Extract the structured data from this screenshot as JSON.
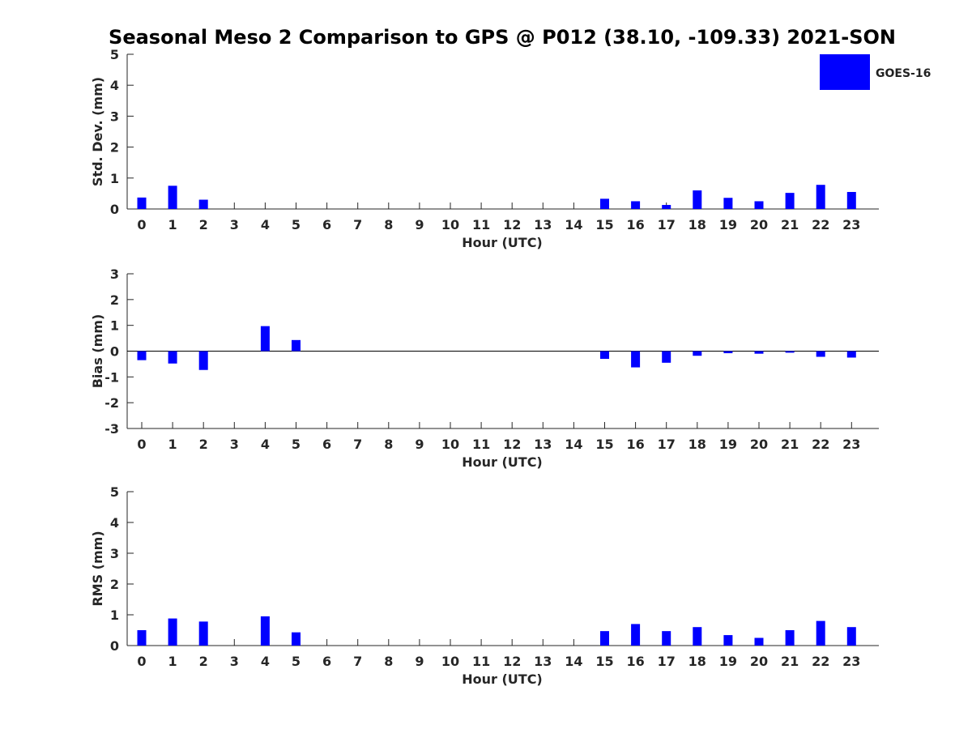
{
  "figure": {
    "title": "Seasonal Meso 2 Comparison to GPS @ P012 (38.10, -109.33) 2021-SON",
    "legend_label": "GOES-16",
    "bar_color": "#0000ff",
    "legend_placement": "top-right"
  },
  "chart_data": [
    {
      "type": "bar",
      "title": "Seasonal Meso 2 Comparison to GPS @ P012 (38.10, -109.33) 2021-SON",
      "xlabel": "Hour (UTC)",
      "ylabel": "Std. Dev. (mm)",
      "ylim": [
        0,
        5
      ],
      "yticks": [
        0,
        1,
        2,
        3,
        4,
        5
      ],
      "categories": [
        "0",
        "1",
        "2",
        "3",
        "4",
        "5",
        "6",
        "7",
        "8",
        "9",
        "10",
        "11",
        "12",
        "13",
        "14",
        "15",
        "16",
        "17",
        "18",
        "19",
        "20",
        "21",
        "22",
        "23"
      ],
      "series": [
        {
          "name": "GOES-16",
          "values": [
            0.37,
            0.75,
            0.3,
            null,
            0.0,
            0.0,
            null,
            null,
            null,
            null,
            null,
            null,
            null,
            null,
            null,
            0.33,
            0.25,
            0.13,
            0.6,
            0.36,
            0.25,
            0.52,
            0.78,
            0.55
          ]
        }
      ],
      "grid": false,
      "legend": "top-right"
    },
    {
      "type": "bar",
      "xlabel": "Hour (UTC)",
      "ylabel": "Bias (mm)",
      "ylim": [
        -3,
        3
      ],
      "yticks": [
        -3,
        -2,
        -1,
        0,
        1,
        2,
        3
      ],
      "categories": [
        "0",
        "1",
        "2",
        "3",
        "4",
        "5",
        "6",
        "7",
        "8",
        "9",
        "10",
        "11",
        "12",
        "13",
        "14",
        "15",
        "16",
        "17",
        "18",
        "19",
        "20",
        "21",
        "22",
        "23"
      ],
      "series": [
        {
          "name": "GOES-16",
          "values": [
            -0.35,
            -0.48,
            -0.73,
            null,
            0.97,
            0.43,
            null,
            null,
            null,
            null,
            null,
            null,
            null,
            null,
            null,
            -0.3,
            -0.63,
            -0.45,
            -0.18,
            -0.08,
            -0.1,
            -0.06,
            -0.22,
            -0.25
          ]
        }
      ],
      "zero_line": true,
      "grid": false
    },
    {
      "type": "bar",
      "xlabel": "Hour (UTC)",
      "ylabel": "RMS (mm)",
      "ylim": [
        0,
        5
      ],
      "yticks": [
        0,
        1,
        2,
        3,
        4,
        5
      ],
      "categories": [
        "0",
        "1",
        "2",
        "3",
        "4",
        "5",
        "6",
        "7",
        "8",
        "9",
        "10",
        "11",
        "12",
        "13",
        "14",
        "15",
        "16",
        "17",
        "18",
        "19",
        "20",
        "21",
        "22",
        "23"
      ],
      "series": [
        {
          "name": "GOES-16",
          "values": [
            0.5,
            0.88,
            0.78,
            null,
            0.95,
            0.43,
            null,
            null,
            null,
            null,
            null,
            null,
            null,
            null,
            null,
            0.47,
            0.7,
            0.47,
            0.6,
            0.34,
            0.25,
            0.5,
            0.8,
            0.6
          ]
        }
      ],
      "grid": false
    }
  ]
}
